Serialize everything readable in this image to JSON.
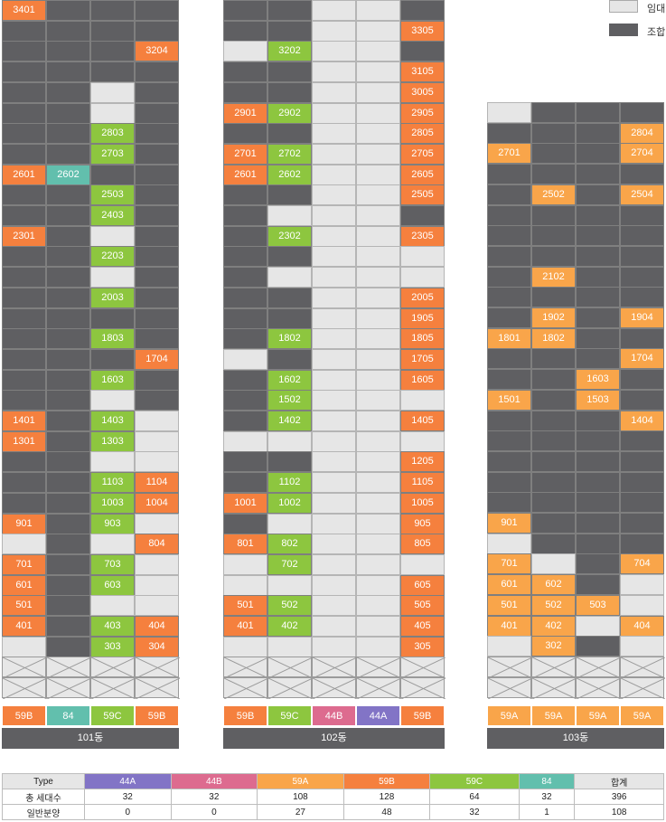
{
  "legend": [
    {
      "label": "임대",
      "color": "#e6e6e6"
    },
    {
      "label": "조합",
      "color": "#5f5f62"
    }
  ],
  "colors": {
    "G": "#5f5f62",
    "L": "#e6e6e6",
    "O": "#f5803e",
    "Y": "#f9a54a",
    "N": "#8dc63f",
    "T": "#62bfad",
    "X": "#e7e7e7"
  },
  "buildings": [
    {
      "name": "101동",
      "types": [
        {
          "label": "59B",
          "color": "#f5803e"
        },
        {
          "label": "84",
          "color": "#62bfad"
        },
        {
          "label": "59C",
          "color": "#8dc63f"
        },
        {
          "label": "59B",
          "color": "#f5803e"
        }
      ],
      "floors": [
        [
          "O:3401",
          "G",
          "G",
          "G"
        ],
        [
          "G",
          "G",
          "G",
          "G"
        ],
        [
          "G",
          "G",
          "G",
          "O:3204"
        ],
        [
          "G",
          "G",
          "G",
          "G"
        ],
        [
          "G",
          "G",
          "L",
          "G"
        ],
        [
          "G",
          "G",
          "L",
          "G"
        ],
        [
          "G",
          "G",
          "N:2803",
          "G"
        ],
        [
          "G",
          "G",
          "N:2703",
          "G"
        ],
        [
          "O:2601",
          "T:2602",
          "G",
          "G"
        ],
        [
          "G",
          "G",
          "N:2503",
          "G"
        ],
        [
          "G",
          "G",
          "N:2403",
          "G"
        ],
        [
          "O:2301",
          "G",
          "L",
          "G"
        ],
        [
          "G",
          "G",
          "N:2203",
          "G"
        ],
        [
          "G",
          "G",
          "L",
          "G"
        ],
        [
          "G",
          "G",
          "N:2003",
          "G"
        ],
        [
          "G",
          "G",
          "G",
          "G"
        ],
        [
          "G",
          "G",
          "N:1803",
          "G"
        ],
        [
          "G",
          "G",
          "G",
          "O:1704"
        ],
        [
          "G",
          "G",
          "N:1603",
          "G"
        ],
        [
          "G",
          "G",
          "L",
          "G"
        ],
        [
          "O:1401",
          "G",
          "N:1403",
          "L"
        ],
        [
          "O:1301",
          "G",
          "N:1303",
          "L"
        ],
        [
          "G",
          "G",
          "L",
          "L"
        ],
        [
          "G",
          "G",
          "N:1103",
          "O:1104"
        ],
        [
          "G",
          "G",
          "N:1003",
          "O:1004"
        ],
        [
          "O:901",
          "G",
          "N:903",
          "L"
        ],
        [
          "L",
          "G",
          "L",
          "O:804"
        ],
        [
          "O:701",
          "G",
          "N:703",
          "L"
        ],
        [
          "O:601",
          "G",
          "N:603",
          "L"
        ],
        [
          "O:501",
          "G",
          "L",
          "L"
        ],
        [
          "O:401",
          "G",
          "N:403",
          "O:404"
        ],
        [
          "L",
          "G",
          "N:303",
          "O:304"
        ],
        [
          "X",
          "X",
          "X",
          "X"
        ],
        [
          "X",
          "X",
          "X",
          "X"
        ]
      ]
    },
    {
      "name": "102동",
      "types": [
        {
          "label": "59B",
          "color": "#f5803e"
        },
        {
          "label": "59C",
          "color": "#8dc63f"
        },
        {
          "label": "44B",
          "color": "#dd6b8f"
        },
        {
          "label": "44A",
          "color": "#8274c6"
        },
        {
          "label": "59B",
          "color": "#f5803e"
        }
      ],
      "floors": [
        [
          "G",
          "G",
          "L",
          "L",
          "G"
        ],
        [
          "G",
          "G",
          "L",
          "L",
          "O:3305"
        ],
        [
          "L",
          "N:3202",
          "L",
          "L",
          "G"
        ],
        [
          "G",
          "G",
          "L",
          "L",
          "O:3105"
        ],
        [
          "G",
          "G",
          "L",
          "L",
          "O:3005"
        ],
        [
          "O:2901",
          "N:2902",
          "L",
          "L",
          "O:2905"
        ],
        [
          "G",
          "G",
          "L",
          "L",
          "O:2805"
        ],
        [
          "O:2701",
          "N:2702",
          "L",
          "L",
          "O:2705"
        ],
        [
          "O:2601",
          "N:2602",
          "L",
          "L",
          "O:2605"
        ],
        [
          "G",
          "G",
          "L",
          "L",
          "O:2505"
        ],
        [
          "G",
          "L",
          "L",
          "L",
          "G"
        ],
        [
          "G",
          "N:2302",
          "L",
          "L",
          "O:2305"
        ],
        [
          "G",
          "G",
          "L",
          "L",
          "L"
        ],
        [
          "G",
          "L",
          "L",
          "L",
          "L"
        ],
        [
          "G",
          "G",
          "L",
          "L",
          "O:2005"
        ],
        [
          "G",
          "G",
          "L",
          "L",
          "O:1905"
        ],
        [
          "G",
          "N:1802",
          "L",
          "L",
          "O:1805"
        ],
        [
          "L",
          "G",
          "L",
          "L",
          "O:1705"
        ],
        [
          "G",
          "N:1602",
          "L",
          "L",
          "O:1605"
        ],
        [
          "G",
          "N:1502",
          "L",
          "L",
          "L"
        ],
        [
          "G",
          "N:1402",
          "L",
          "L",
          "O:1405"
        ],
        [
          "L",
          "L",
          "L",
          "L",
          "L"
        ],
        [
          "G",
          "G",
          "L",
          "L",
          "O:1205"
        ],
        [
          "G",
          "N:1102",
          "L",
          "L",
          "O:1105"
        ],
        [
          "O:1001",
          "N:1002",
          "L",
          "L",
          "O:1005"
        ],
        [
          "G",
          "L",
          "L",
          "L",
          "O:905"
        ],
        [
          "O:801",
          "N:802",
          "L",
          "L",
          "O:805"
        ],
        [
          "L",
          "N:702",
          "L",
          "L",
          "L"
        ],
        [
          "L",
          "L",
          "L",
          "L",
          "O:605"
        ],
        [
          "O:501",
          "N:502",
          "L",
          "L",
          "O:505"
        ],
        [
          "O:401",
          "N:402",
          "L",
          "L",
          "O:405"
        ],
        [
          "L",
          "L",
          "L",
          "L",
          "O:305"
        ],
        [
          "X",
          "X",
          "X",
          "X",
          "X"
        ],
        [
          "X",
          "X",
          "X",
          "X",
          "X"
        ]
      ]
    },
    {
      "name": "103동",
      "types": [
        {
          "label": "59A",
          "color": "#f9a54a"
        },
        {
          "label": "59A",
          "color": "#f9a54a"
        },
        {
          "label": "59A",
          "color": "#f9a54a"
        },
        {
          "label": "59A",
          "color": "#f9a54a"
        }
      ],
      "floors": [
        [
          "L",
          "G",
          "G",
          "G"
        ],
        [
          "G",
          "G",
          "G",
          "Y:2804"
        ],
        [
          "Y:2701",
          "G",
          "G",
          "Y:2704"
        ],
        [
          "G",
          "G",
          "G",
          "G"
        ],
        [
          "G",
          "Y:2502",
          "G",
          "Y:2504"
        ],
        [
          "G",
          "G",
          "G",
          "G"
        ],
        [
          "G",
          "G",
          "G",
          "G"
        ],
        [
          "G",
          "G",
          "G",
          "G"
        ],
        [
          "G",
          "Y:2102",
          "G",
          "G"
        ],
        [
          "G",
          "G",
          "G",
          "G"
        ],
        [
          "G",
          "Y:1902",
          "G",
          "Y:1904"
        ],
        [
          "Y:1801",
          "Y:1802",
          "G",
          "G"
        ],
        [
          "G",
          "G",
          "G",
          "Y:1704"
        ],
        [
          "G",
          "G",
          "Y:1603",
          "G"
        ],
        [
          "Y:1501",
          "G",
          "Y:1503",
          "G"
        ],
        [
          "G",
          "G",
          "G",
          "Y:1404"
        ],
        [
          "G",
          "G",
          "G",
          "G"
        ],
        [
          "G",
          "G",
          "G",
          "G"
        ],
        [
          "G",
          "G",
          "G",
          "G"
        ],
        [
          "G",
          "G",
          "G",
          "G"
        ],
        [
          "Y:901",
          "G",
          "G",
          "G"
        ],
        [
          "L",
          "G",
          "G",
          "G"
        ],
        [
          "Y:701",
          "L",
          "G",
          "Y:704"
        ],
        [
          "Y:601",
          "Y:602",
          "G",
          "L"
        ],
        [
          "Y:501",
          "Y:502",
          "Y:503",
          "L"
        ],
        [
          "Y:401",
          "Y:402",
          "L",
          "Y:404"
        ],
        [
          "L",
          "Y:302",
          "G",
          "L"
        ],
        [
          "X",
          "X",
          "X",
          "X"
        ],
        [
          "X",
          "X",
          "X",
          "X"
        ]
      ]
    }
  ],
  "summary": {
    "headers": [
      {
        "label": "Type",
        "color": "#e6e6e6",
        "dark": true
      },
      {
        "label": "44A",
        "color": "#8274c6"
      },
      {
        "label": "44B",
        "color": "#dd6b8f"
      },
      {
        "label": "59A",
        "color": "#f9a54a"
      },
      {
        "label": "59B",
        "color": "#f5803e"
      },
      {
        "label": "59C",
        "color": "#8dc63f"
      },
      {
        "label": "84",
        "color": "#62bfad"
      },
      {
        "label": "합계",
        "color": "#e6e6e6",
        "dark": true
      }
    ],
    "rows": [
      [
        "총 세대수",
        "32",
        "32",
        "108",
        "128",
        "64",
        "32",
        "396"
      ],
      [
        "일반분양",
        "0",
        "0",
        "27",
        "48",
        "32",
        "1",
        "108"
      ]
    ]
  }
}
